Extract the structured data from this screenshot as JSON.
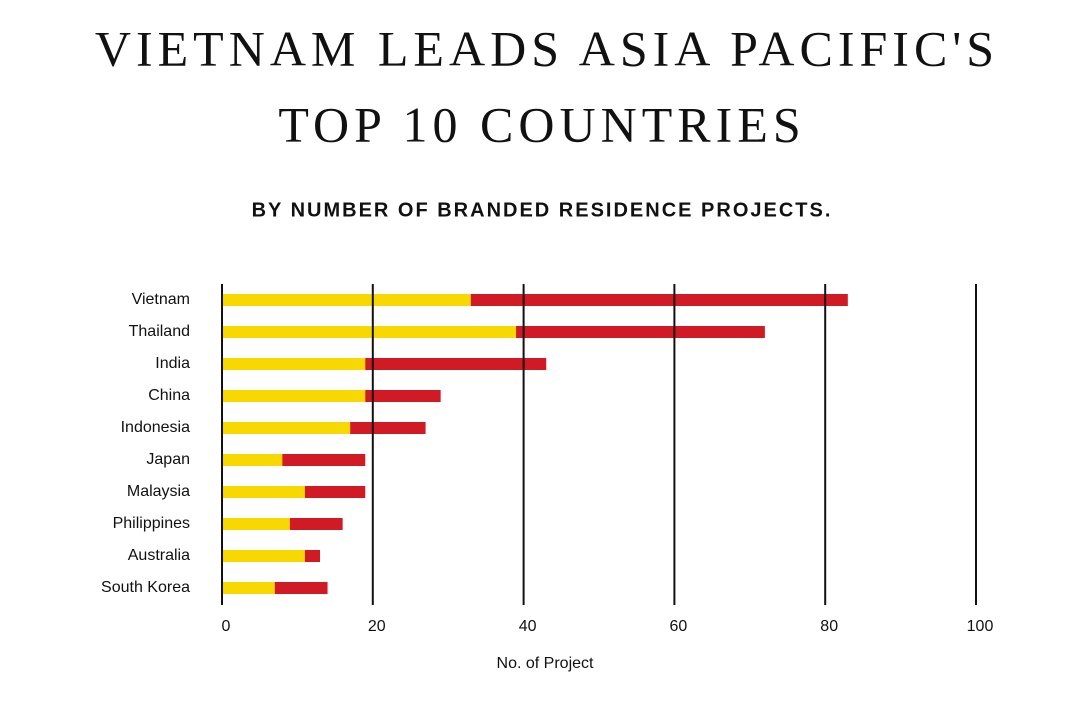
{
  "chart_data": {
    "type": "stacked-barh",
    "title": [
      "VIETNAM LEADS ASIA PACIFIC'S",
      "TOP 10 COUNTRIES"
    ],
    "subtitle": "BY NUMBER OF BRANDED RESIDENCE PROJECTS.",
    "x_label": "No. of Project",
    "categories": [
      "Vietnam",
      "Thailand",
      "India",
      "China",
      "Indonesia",
      "Japan",
      "Malaysia",
      "Philippines",
      "Australia",
      "South Korea"
    ],
    "series": [
      {
        "color": "#f7d800",
        "values": [
          33,
          39,
          19,
          19,
          17,
          8,
          11,
          9,
          11,
          7
        ]
      },
      {
        "color": "#d01b24",
        "values": [
          50,
          33,
          24,
          10,
          10,
          11,
          8,
          7,
          2,
          7
        ]
      }
    ],
    "xlim": [
      0,
      100
    ],
    "xticks": [
      0,
      20,
      40,
      60,
      80,
      100
    ],
    "grid": true
  }
}
